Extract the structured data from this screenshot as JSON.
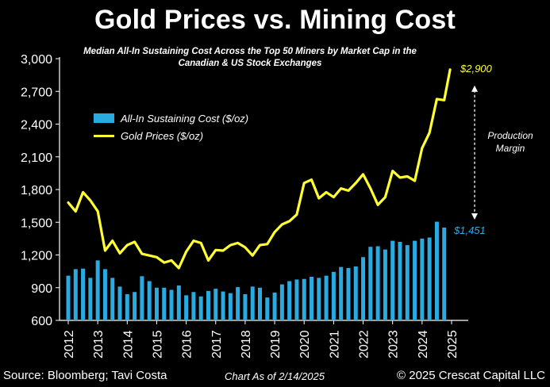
{
  "title": "Gold Prices vs. Mining Cost",
  "subtitle": "Median All-In Sustaining Cost Across the Top 50 Miners by Market Cap in the Canadian & US Stock Exchanges",
  "legend": {
    "bar_label": "All-In Sustaining Cost ($/oz)",
    "line_label": "Gold Prices ($/oz)"
  },
  "annotation": "Production Margin",
  "footer": {
    "source": "Source: Bloomberg; Tavi Costa",
    "date": "Chart As of 2/14/2025",
    "copyright": "© 2025 Crescat Capital LLC"
  },
  "colors": {
    "bar": "#29abe2",
    "line": "#ffff33",
    "background": "#000000",
    "text": "#ffffff"
  },
  "chart_data": {
    "type": "bar+line",
    "title": "Gold Prices vs. Mining Cost",
    "ylim": [
      600,
      3000
    ],
    "yticks": [
      600,
      900,
      1200,
      1500,
      1800,
      2100,
      2400,
      2700,
      3000
    ],
    "ytick_labels": [
      "600",
      "900",
      "1,200",
      "1,500",
      "1,800",
      "2,100",
      "2,400",
      "2,700",
      "3,000"
    ],
    "x_range": [
      2012,
      2025
    ],
    "xticks": [
      2012,
      2013,
      2014,
      2015,
      2016,
      2017,
      2018,
      2019,
      2020,
      2021,
      2022,
      2023,
      2024,
      2025
    ],
    "series": [
      {
        "name": "All-In Sustaining Cost ($/oz)",
        "type": "bar",
        "x": [
          2012.0,
          2012.25,
          2012.5,
          2012.75,
          2013.0,
          2013.25,
          2013.5,
          2013.75,
          2014.0,
          2014.25,
          2014.5,
          2014.75,
          2015.0,
          2015.25,
          2015.5,
          2015.75,
          2016.0,
          2016.25,
          2016.5,
          2016.75,
          2017.0,
          2017.25,
          2017.5,
          2017.75,
          2018.0,
          2018.25,
          2018.5,
          2018.75,
          2019.0,
          2019.25,
          2019.5,
          2019.75,
          2020.0,
          2020.25,
          2020.5,
          2020.75,
          2021.0,
          2021.25,
          2021.5,
          2021.75,
          2022.0,
          2022.25,
          2022.5,
          2022.75,
          2023.0,
          2023.25,
          2023.5,
          2023.75,
          2024.0,
          2024.25,
          2024.5,
          2024.75
        ],
        "values": [
          1010,
          1070,
          1075,
          990,
          1150,
          1070,
          990,
          910,
          840,
          860,
          1005,
          960,
          900,
          900,
          880,
          920,
          830,
          860,
          820,
          870,
          890,
          865,
          850,
          905,
          840,
          910,
          900,
          810,
          855,
          930,
          960,
          975,
          980,
          1000,
          990,
          1010,
          1045,
          1090,
          1080,
          1095,
          1180,
          1275,
          1280,
          1250,
          1330,
          1320,
          1290,
          1330,
          1350,
          1360,
          1505,
          1451
        ]
      },
      {
        "name": "Gold Prices ($/oz)",
        "type": "line",
        "x": [
          2012.0,
          2012.25,
          2012.5,
          2012.75,
          2013.0,
          2013.25,
          2013.5,
          2013.75,
          2014.0,
          2014.25,
          2014.5,
          2014.75,
          2015.0,
          2015.25,
          2015.5,
          2015.75,
          2016.0,
          2016.25,
          2016.5,
          2016.75,
          2017.0,
          2017.25,
          2017.5,
          2017.75,
          2018.0,
          2018.25,
          2018.5,
          2018.75,
          2019.0,
          2019.25,
          2019.5,
          2019.75,
          2020.0,
          2020.25,
          2020.5,
          2020.75,
          2021.0,
          2021.25,
          2021.5,
          2021.75,
          2022.0,
          2022.25,
          2022.5,
          2022.75,
          2023.0,
          2023.25,
          2023.5,
          2023.75,
          2024.0,
          2024.25,
          2024.5,
          2024.75,
          2024.95
        ],
        "values": [
          1680,
          1600,
          1775,
          1700,
          1600,
          1240,
          1330,
          1215,
          1290,
          1320,
          1210,
          1195,
          1180,
          1130,
          1150,
          1080,
          1230,
          1330,
          1310,
          1150,
          1245,
          1240,
          1290,
          1310,
          1270,
          1195,
          1290,
          1300,
          1410,
          1480,
          1510,
          1570,
          1860,
          1890,
          1720,
          1775,
          1730,
          1810,
          1790,
          1860,
          1940,
          1810,
          1660,
          1730,
          1970,
          1910,
          1920,
          1880,
          2180,
          2320,
          2630,
          2620,
          2900
        ]
      }
    ],
    "data_labels": [
      {
        "series": "Gold Prices ($/oz)",
        "x": 2025,
        "text": "$2,900"
      },
      {
        "series": "All-In Sustaining Cost ($/oz)",
        "x": 2025,
        "text": "$1,451"
      }
    ]
  }
}
